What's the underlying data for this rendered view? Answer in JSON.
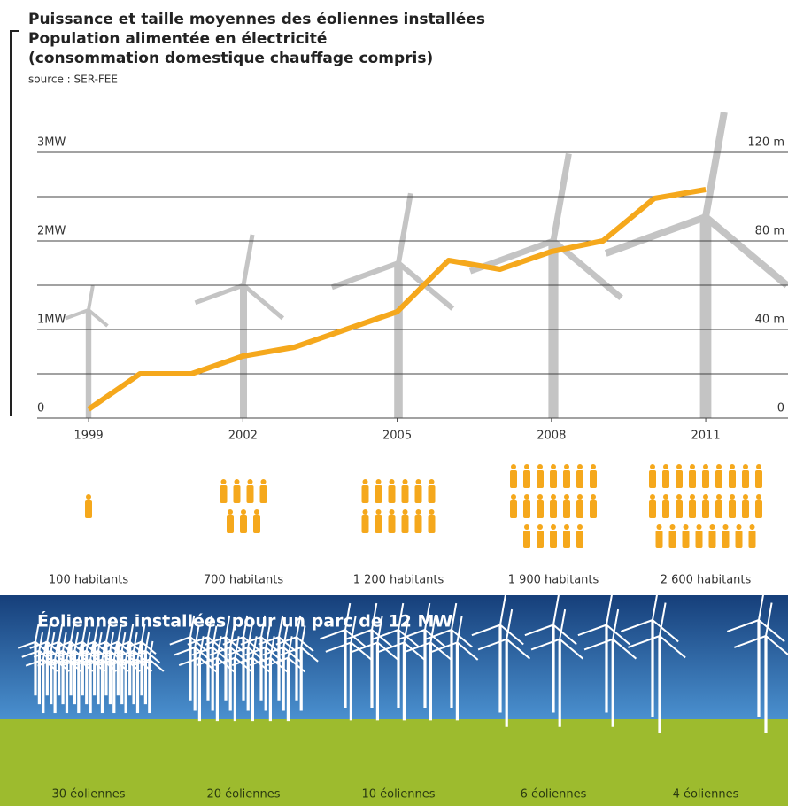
{
  "chart_data": {
    "type": "line",
    "title": "Puissance et taille moyennes des éoliennes installées",
    "subtitle": [
      "Population alimentée en électricité",
      "(consommation domestique chauffage compris)"
    ],
    "source": "source : SER-FEE",
    "x": [
      1999,
      2000,
      2001,
      2002,
      2003,
      2004,
      2005,
      2006,
      2007,
      2008,
      2009,
      2010,
      2011
    ],
    "values": [
      0.1,
      0.5,
      0.5,
      0.7,
      0.8,
      1.0,
      1.2,
      1.78,
      1.68,
      1.88,
      2.0,
      2.48,
      2.58
    ],
    "color": "#f5a81c",
    "xlim": [
      1998,
      2012.6
    ],
    "xticks": [
      1999,
      2002,
      2005,
      2008,
      2011
    ],
    "ylim": [
      0,
      3
    ],
    "yticks": [
      0,
      {
        "value": 1,
        "label": "1MW"
      },
      {
        "value": 2,
        "label": "2MW"
      },
      {
        "value": 3,
        "label": "3MW"
      }
    ],
    "minor_yticks": [
      0.5,
      1.5,
      2.5
    ],
    "y2lim": [
      0,
      120
    ],
    "y2ticks": [
      0,
      {
        "value": 40,
        "label": "40 m"
      },
      {
        "value": 80,
        "label": "80 m"
      },
      {
        "value": 120,
        "label": "120 m"
      }
    ],
    "grid": true
  },
  "population": {
    "values": [
      100,
      700,
      1200,
      1900,
      2600
    ],
    "value_labels": [
      "100 habitants",
      "700 habitants",
      "1 200 habitants",
      "1 900 habitants",
      "2 600 habitants"
    ],
    "color": "#f5a81c"
  },
  "parc": {
    "title": "Éoliennes installées pour un parc de 12 MW",
    "values": [
      30,
      20,
      10,
      6,
      4
    ],
    "value_labels": [
      "30 éoliennes",
      "20 éoliennes",
      "10 éoliennes",
      "6 éoliennes",
      "4 éoliennes"
    ]
  }
}
